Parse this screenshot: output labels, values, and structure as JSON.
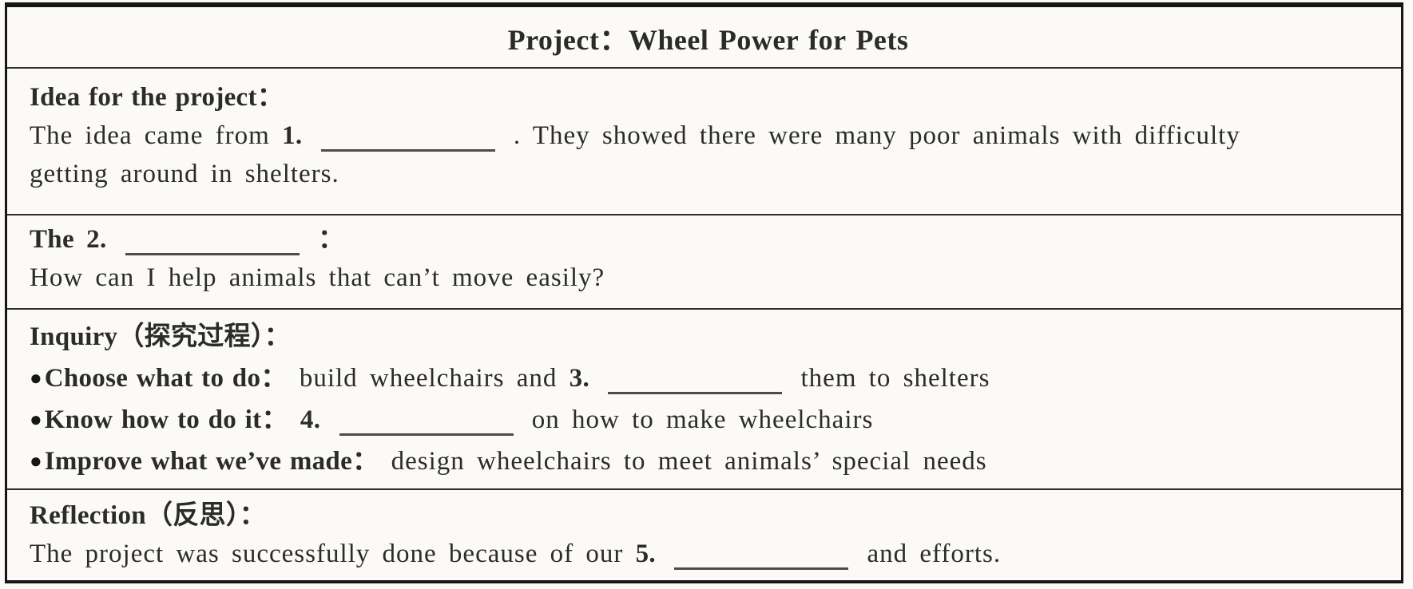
{
  "colors": {
    "paper": "#fbfaf7",
    "ink": "#2b2b2b",
    "table_border": "#161616",
    "blank_underline": "#4c4c4c"
  },
  "title": "Project：Wheel Power for Pets",
  "bullet_glyph": "●",
  "idea": {
    "heading": "Idea for the project：",
    "line1_pre": "The idea came from",
    "blank1_label": "1.",
    "line1_post": ". They showed there were many poor animals with difficulty",
    "line2": "getting around in shelters."
  },
  "question": {
    "line1_pre": "The",
    "blank2_label": "2.",
    "line1_colon": "：",
    "line2": "How can I help animals that can’t move easily?"
  },
  "inquiry": {
    "heading": "Inquiry（探究过程）：",
    "bullet1_label": "Choose what to do：",
    "bullet1_pre": "build wheelchairs and",
    "blank3_label": "3.",
    "bullet1_post": "them to shelters",
    "bullet2_label": "Know how to do it：",
    "blank4_label": "4.",
    "bullet2_post": "on how to make wheelchairs",
    "bullet3_label": "Improve what we’ve made：",
    "bullet3_text": "design wheelchairs to meet animals’ special needs"
  },
  "reflection": {
    "heading": "Reflection（反思）：",
    "line_pre": "The project was successfully done because of our",
    "blank5_label": "5.",
    "line_post": "and efforts."
  }
}
